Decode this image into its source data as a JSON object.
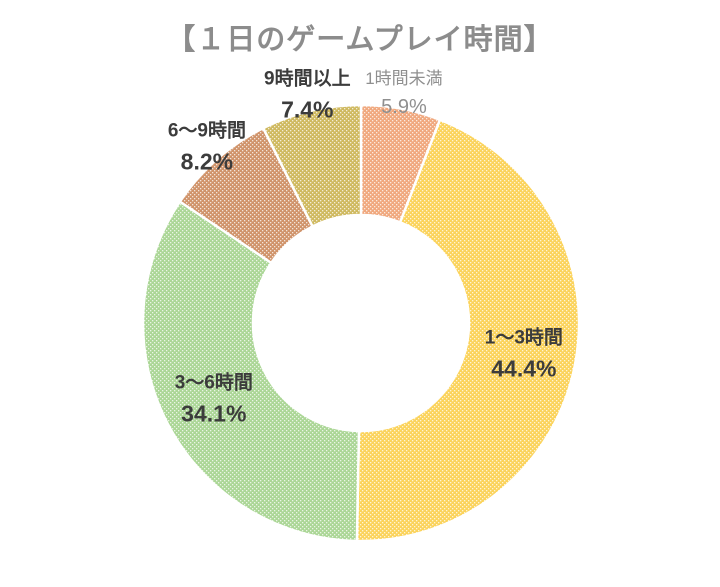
{
  "title": "【１日のゲームプレイ時間】",
  "title_color": "#8c8c8c",
  "background": "#ffffff",
  "chart_data": {
    "type": "pie",
    "subtype": "donut",
    "title": "【１日のゲームプレイ時間】",
    "start_angle_deg": 0,
    "direction": "clockwise",
    "hatch": "diagonal-dots",
    "categories": [
      "1時間未満",
      "1〜3時間",
      "3〜6時間",
      "6〜9時間",
      "9時間以上"
    ],
    "values": [
      5.9,
      44.4,
      34.1,
      8.2,
      7.4
    ],
    "percent_labels": [
      "5.9%",
      "44.4%",
      "34.1%",
      "8.2%",
      "7.4%"
    ],
    "colors": [
      "#F0A87E",
      "#FBD35B",
      "#ABD696",
      "#D0936A",
      "#CFB95F"
    ],
    "gap_color": "#ffffff",
    "hole_color": "#ffffff",
    "label_colors": {
      "default": "#3c3c3c",
      "muted": "#8f8f8f"
    },
    "label_styles": [
      {
        "placement": "outside",
        "muted": true
      },
      {
        "placement": "inside",
        "muted": false
      },
      {
        "placement": "inside",
        "muted": false
      },
      {
        "placement": "outside",
        "muted": false
      },
      {
        "placement": "outside",
        "muted": false
      }
    ]
  }
}
